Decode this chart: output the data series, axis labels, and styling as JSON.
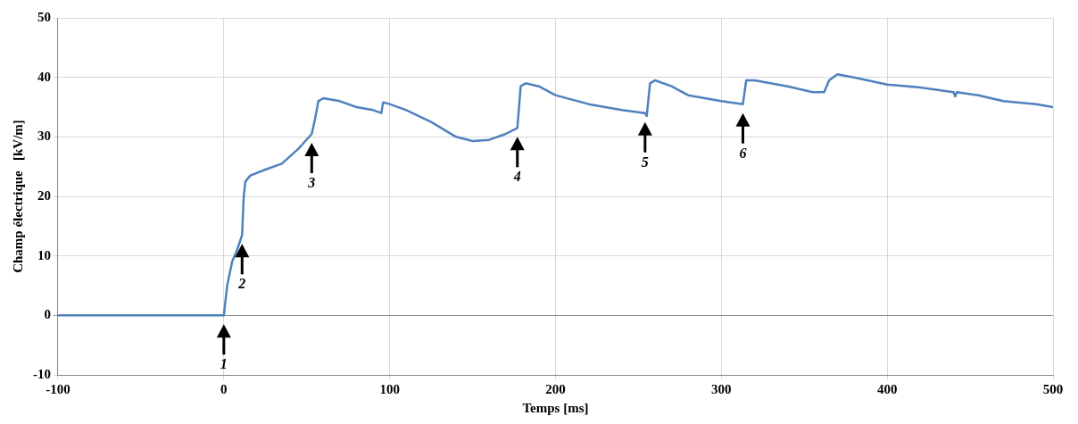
{
  "chart_data": {
    "type": "line",
    "xlabel": "Temps [ms]",
    "ylabel": "Champ électrique   [kV/m]",
    "xlim": [
      -100,
      500
    ],
    "xticks": [
      -100,
      0,
      100,
      200,
      300,
      400,
      500
    ],
    "ylim": [
      -10,
      50
    ],
    "yticks": [
      -10,
      0,
      10,
      20,
      30,
      40,
      50
    ],
    "grid": true,
    "marker": "none",
    "line_style": "solid",
    "series": [
      {
        "color": "#4f81bd",
        "x": [
          -100,
          0,
          2,
          5,
          8,
          11,
          12,
          13,
          16,
          25,
          35,
          45,
          53,
          55,
          57,
          60,
          70,
          80,
          90,
          95,
          96,
          100,
          110,
          125,
          140,
          150,
          160,
          170,
          177,
          179,
          182,
          190,
          200,
          220,
          240,
          254,
          255,
          257,
          260,
          270,
          280,
          300,
          313,
          315,
          320,
          340,
          355,
          362,
          365,
          370,
          380,
          400,
          420,
          440,
          441,
          442,
          455,
          470,
          490,
          500
        ],
        "values": [
          0,
          0,
          5,
          9,
          11,
          13.5,
          20,
          22.5,
          23.5,
          24.5,
          25.5,
          28,
          30.5,
          33,
          36,
          36.5,
          36,
          35,
          34.5,
          34,
          35.8,
          35.5,
          34.5,
          32.5,
          30,
          29.3,
          29.5,
          30.5,
          31.5,
          38.5,
          39,
          38.5,
          37,
          35.5,
          34.5,
          34,
          33.5,
          39,
          39.5,
          38.5,
          37,
          36,
          35.5,
          39.5,
          39.5,
          38.5,
          37.5,
          37.5,
          39.5,
          40.5,
          40,
          38.8,
          38.3,
          37.5,
          36.8,
          37.5,
          37,
          36,
          35.5,
          35
        ]
      }
    ],
    "annotations": [
      {
        "text": "1",
        "x": 0,
        "y": 0
      },
      {
        "text": "2",
        "x": 11,
        "y": 13.5
      },
      {
        "text": "3",
        "x": 53,
        "y": 30.5
      },
      {
        "text": "4",
        "x": 177,
        "y": 31.5
      },
      {
        "text": "5",
        "x": 254,
        "y": 34
      },
      {
        "text": "6",
        "x": 313,
        "y": 35.5
      }
    ]
  }
}
